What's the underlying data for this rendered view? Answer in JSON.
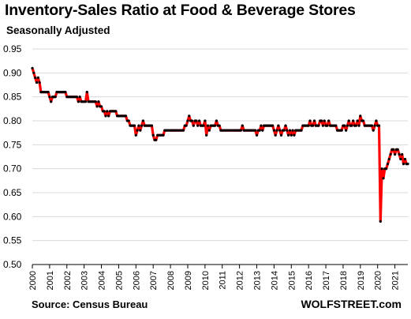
{
  "header": {
    "title": "Inventory-Sales  Ratio at Food & Beverage Stores",
    "subtitle": "Seasonally Adjusted"
  },
  "footer": {
    "source": "Source: Census Bureau",
    "brand": "WOLFSTREET.com"
  },
  "chart_data": {
    "type": "line",
    "title": "Inventory-Sales  Ratio at Food & Beverage Stores",
    "subtitle": "Seasonally Adjusted",
    "xlabel": "",
    "ylabel": "",
    "ylim": [
      0.5,
      0.95
    ],
    "xlim": [
      "2000-01",
      "2021-10"
    ],
    "y_ticks": [
      "0.95",
      "0.90",
      "0.85",
      "0.80",
      "0.75",
      "0.70",
      "0.65",
      "0.60",
      "0.55",
      "0.50"
    ],
    "x_ticks": [
      "2000",
      "2001",
      "2002",
      "2003",
      "2004",
      "2005",
      "2006",
      "2007",
      "2008",
      "2009",
      "2010",
      "2011",
      "2012",
      "2013",
      "2014",
      "2015",
      "2016",
      "2017",
      "2018",
      "2019",
      "2020",
      "2021"
    ],
    "grid": "horizontal",
    "legend": "none",
    "colors": {
      "line": "#ff0000",
      "markers": "#000000",
      "grid": "#d9d9d9",
      "axis": "#000000"
    },
    "series": [
      {
        "values": [
          [
            "2000-01",
            0.91
          ],
          [
            "2000-02",
            0.9
          ],
          [
            "2000-03",
            0.89
          ],
          [
            "2000-04",
            0.88
          ],
          [
            "2000-05",
            0.89
          ],
          [
            "2000-06",
            0.88
          ],
          [
            "2000-07",
            0.86
          ],
          [
            "2000-08",
            0.86
          ],
          [
            "2000-09",
            0.86
          ],
          [
            "2000-10",
            0.86
          ],
          [
            "2000-11",
            0.86
          ],
          [
            "2000-12",
            0.86
          ],
          [
            "2001-01",
            0.85
          ],
          [
            "2001-02",
            0.84
          ],
          [
            "2001-03",
            0.85
          ],
          [
            "2001-04",
            0.85
          ],
          [
            "2001-05",
            0.85
          ],
          [
            "2001-06",
            0.86
          ],
          [
            "2001-07",
            0.86
          ],
          [
            "2001-08",
            0.86
          ],
          [
            "2001-09",
            0.86
          ],
          [
            "2001-10",
            0.86
          ],
          [
            "2001-11",
            0.86
          ],
          [
            "2001-12",
            0.86
          ],
          [
            "2002-01",
            0.85
          ],
          [
            "2002-02",
            0.85
          ],
          [
            "2002-03",
            0.85
          ],
          [
            "2002-04",
            0.85
          ],
          [
            "2002-05",
            0.85
          ],
          [
            "2002-06",
            0.85
          ],
          [
            "2002-07",
            0.85
          ],
          [
            "2002-08",
            0.85
          ],
          [
            "2002-09",
            0.84
          ],
          [
            "2002-10",
            0.85
          ],
          [
            "2002-11",
            0.84
          ],
          [
            "2002-12",
            0.84
          ],
          [
            "2003-01",
            0.84
          ],
          [
            "2003-02",
            0.84
          ],
          [
            "2003-03",
            0.86
          ],
          [
            "2003-04",
            0.84
          ],
          [
            "2003-05",
            0.84
          ],
          [
            "2003-06",
            0.84
          ],
          [
            "2003-07",
            0.84
          ],
          [
            "2003-08",
            0.84
          ],
          [
            "2003-09",
            0.84
          ],
          [
            "2003-10",
            0.83
          ],
          [
            "2003-11",
            0.84
          ],
          [
            "2003-12",
            0.83
          ],
          [
            "2004-01",
            0.83
          ],
          [
            "2004-02",
            0.82
          ],
          [
            "2004-03",
            0.82
          ],
          [
            "2004-04",
            0.81
          ],
          [
            "2004-05",
            0.82
          ],
          [
            "2004-06",
            0.81
          ],
          [
            "2004-07",
            0.82
          ],
          [
            "2004-08",
            0.82
          ],
          [
            "2004-09",
            0.82
          ],
          [
            "2004-10",
            0.82
          ],
          [
            "2004-11",
            0.82
          ],
          [
            "2004-12",
            0.81
          ],
          [
            "2005-01",
            0.81
          ],
          [
            "2005-02",
            0.81
          ],
          [
            "2005-03",
            0.81
          ],
          [
            "2005-04",
            0.81
          ],
          [
            "2005-05",
            0.81
          ],
          [
            "2005-06",
            0.81
          ],
          [
            "2005-07",
            0.8
          ],
          [
            "2005-08",
            0.8
          ],
          [
            "2005-09",
            0.79
          ],
          [
            "2005-10",
            0.79
          ],
          [
            "2005-11",
            0.79
          ],
          [
            "2005-12",
            0.79
          ],
          [
            "2006-01",
            0.77
          ],
          [
            "2006-02",
            0.78
          ],
          [
            "2006-03",
            0.79
          ],
          [
            "2006-04",
            0.78
          ],
          [
            "2006-05",
            0.79
          ],
          [
            "2006-06",
            0.8
          ],
          [
            "2006-07",
            0.79
          ],
          [
            "2006-08",
            0.79
          ],
          [
            "2006-09",
            0.79
          ],
          [
            "2006-10",
            0.79
          ],
          [
            "2006-11",
            0.79
          ],
          [
            "2006-12",
            0.79
          ],
          [
            "2007-01",
            0.77
          ],
          [
            "2007-02",
            0.76
          ],
          [
            "2007-03",
            0.76
          ],
          [
            "2007-04",
            0.77
          ],
          [
            "2007-05",
            0.77
          ],
          [
            "2007-06",
            0.77
          ],
          [
            "2007-07",
            0.77
          ],
          [
            "2007-08",
            0.77
          ],
          [
            "2007-09",
            0.78
          ],
          [
            "2007-10",
            0.78
          ],
          [
            "2007-11",
            0.78
          ],
          [
            "2007-12",
            0.78
          ],
          [
            "2008-01",
            0.78
          ],
          [
            "2008-02",
            0.78
          ],
          [
            "2008-03",
            0.78
          ],
          [
            "2008-04",
            0.78
          ],
          [
            "2008-05",
            0.78
          ],
          [
            "2008-06",
            0.78
          ],
          [
            "2008-07",
            0.78
          ],
          [
            "2008-08",
            0.78
          ],
          [
            "2008-09",
            0.78
          ],
          [
            "2008-10",
            0.78
          ],
          [
            "2008-11",
            0.79
          ],
          [
            "2008-12",
            0.79
          ],
          [
            "2009-01",
            0.8
          ],
          [
            "2009-02",
            0.81
          ],
          [
            "2009-03",
            0.8
          ],
          [
            "2009-04",
            0.8
          ],
          [
            "2009-05",
            0.79
          ],
          [
            "2009-06",
            0.8
          ],
          [
            "2009-07",
            0.8
          ],
          [
            "2009-08",
            0.79
          ],
          [
            "2009-09",
            0.8
          ],
          [
            "2009-10",
            0.79
          ],
          [
            "2009-11",
            0.79
          ],
          [
            "2009-12",
            0.79
          ],
          [
            "2010-01",
            0.8
          ],
          [
            "2010-02",
            0.77
          ],
          [
            "2010-03",
            0.79
          ],
          [
            "2010-04",
            0.78
          ],
          [
            "2010-05",
            0.79
          ],
          [
            "2010-06",
            0.79
          ],
          [
            "2010-07",
            0.79
          ],
          [
            "2010-08",
            0.79
          ],
          [
            "2010-09",
            0.8
          ],
          [
            "2010-10",
            0.79
          ],
          [
            "2010-11",
            0.79
          ],
          [
            "2010-12",
            0.78
          ],
          [
            "2011-01",
            0.78
          ],
          [
            "2011-02",
            0.78
          ],
          [
            "2011-03",
            0.78
          ],
          [
            "2011-04",
            0.78
          ],
          [
            "2011-05",
            0.78
          ],
          [
            "2011-06",
            0.78
          ],
          [
            "2011-07",
            0.78
          ],
          [
            "2011-08",
            0.78
          ],
          [
            "2011-09",
            0.78
          ],
          [
            "2011-10",
            0.78
          ],
          [
            "2011-11",
            0.78
          ],
          [
            "2011-12",
            0.78
          ],
          [
            "2012-01",
            0.78
          ],
          [
            "2012-02",
            0.78
          ],
          [
            "2012-03",
            0.79
          ],
          [
            "2012-04",
            0.78
          ],
          [
            "2012-05",
            0.78
          ],
          [
            "2012-06",
            0.78
          ],
          [
            "2012-07",
            0.78
          ],
          [
            "2012-08",
            0.78
          ],
          [
            "2012-09",
            0.78
          ],
          [
            "2012-10",
            0.78
          ],
          [
            "2012-11",
            0.78
          ],
          [
            "2012-12",
            0.78
          ],
          [
            "2013-01",
            0.77
          ],
          [
            "2013-02",
            0.78
          ],
          [
            "2013-03",
            0.78
          ],
          [
            "2013-04",
            0.79
          ],
          [
            "2013-05",
            0.78
          ],
          [
            "2013-06",
            0.79
          ],
          [
            "2013-07",
            0.79
          ],
          [
            "2013-08",
            0.79
          ],
          [
            "2013-09",
            0.79
          ],
          [
            "2013-10",
            0.79
          ],
          [
            "2013-11",
            0.79
          ],
          [
            "2013-12",
            0.79
          ],
          [
            "2014-01",
            0.78
          ],
          [
            "2014-02",
            0.77
          ],
          [
            "2014-03",
            0.78
          ],
          [
            "2014-04",
            0.79
          ],
          [
            "2014-05",
            0.78
          ],
          [
            "2014-06",
            0.77
          ],
          [
            "2014-07",
            0.78
          ],
          [
            "2014-08",
            0.78
          ],
          [
            "2014-09",
            0.79
          ],
          [
            "2014-10",
            0.78
          ],
          [
            "2014-11",
            0.77
          ],
          [
            "2014-12",
            0.78
          ],
          [
            "2015-01",
            0.77
          ],
          [
            "2015-02",
            0.78
          ],
          [
            "2015-03",
            0.77
          ],
          [
            "2015-04",
            0.78
          ],
          [
            "2015-05",
            0.78
          ],
          [
            "2015-06",
            0.78
          ],
          [
            "2015-07",
            0.78
          ],
          [
            "2015-08",
            0.78
          ],
          [
            "2015-09",
            0.79
          ],
          [
            "2015-10",
            0.79
          ],
          [
            "2015-11",
            0.79
          ],
          [
            "2015-12",
            0.79
          ],
          [
            "2016-01",
            0.79
          ],
          [
            "2016-02",
            0.8
          ],
          [
            "2016-03",
            0.79
          ],
          [
            "2016-04",
            0.79
          ],
          [
            "2016-05",
            0.8
          ],
          [
            "2016-06",
            0.79
          ],
          [
            "2016-07",
            0.79
          ],
          [
            "2016-08",
            0.79
          ],
          [
            "2016-09",
            0.8
          ],
          [
            "2016-10",
            0.8
          ],
          [
            "2016-11",
            0.79
          ],
          [
            "2016-12",
            0.8
          ],
          [
            "2017-01",
            0.79
          ],
          [
            "2017-02",
            0.79
          ],
          [
            "2017-03",
            0.8
          ],
          [
            "2017-04",
            0.79
          ],
          [
            "2017-05",
            0.79
          ],
          [
            "2017-06",
            0.79
          ],
          [
            "2017-07",
            0.79
          ],
          [
            "2017-08",
            0.79
          ],
          [
            "2017-09",
            0.78
          ],
          [
            "2017-10",
            0.78
          ],
          [
            "2017-11",
            0.78
          ],
          [
            "2017-12",
            0.78
          ],
          [
            "2018-01",
            0.79
          ],
          [
            "2018-02",
            0.79
          ],
          [
            "2018-03",
            0.78
          ],
          [
            "2018-04",
            0.79
          ],
          [
            "2018-05",
            0.8
          ],
          [
            "2018-06",
            0.79
          ],
          [
            "2018-07",
            0.79
          ],
          [
            "2018-08",
            0.8
          ],
          [
            "2018-09",
            0.79
          ],
          [
            "2018-10",
            0.79
          ],
          [
            "2018-11",
            0.8
          ],
          [
            "2018-12",
            0.79
          ],
          [
            "2019-01",
            0.81
          ],
          [
            "2019-02",
            0.8
          ],
          [
            "2019-03",
            0.8
          ],
          [
            "2019-04",
            0.79
          ],
          [
            "2019-05",
            0.79
          ],
          [
            "2019-06",
            0.79
          ],
          [
            "2019-07",
            0.79
          ],
          [
            "2019-08",
            0.79
          ],
          [
            "2019-09",
            0.79
          ],
          [
            "2019-10",
            0.78
          ],
          [
            "2019-11",
            0.79
          ],
          [
            "2019-12",
            0.8
          ],
          [
            "2020-01",
            0.79
          ],
          [
            "2020-02",
            0.79
          ],
          [
            "2020-03",
            0.59
          ],
          [
            "2020-04",
            0.7
          ],
          [
            "2020-05",
            0.68
          ],
          [
            "2020-06",
            0.7
          ],
          [
            "2020-07",
            0.7
          ],
          [
            "2020-08",
            0.71
          ],
          [
            "2020-09",
            0.72
          ],
          [
            "2020-10",
            0.73
          ],
          [
            "2020-11",
            0.74
          ],
          [
            "2020-12",
            0.74
          ],
          [
            "2021-01",
            0.73
          ],
          [
            "2021-02",
            0.74
          ],
          [
            "2021-03",
            0.74
          ],
          [
            "2021-04",
            0.73
          ],
          [
            "2021-05",
            0.72
          ],
          [
            "2021-06",
            0.73
          ],
          [
            "2021-07",
            0.71
          ],
          [
            "2021-08",
            0.72
          ],
          [
            "2021-09",
            0.71
          ],
          [
            "2021-10",
            0.71
          ]
        ]
      }
    ]
  }
}
